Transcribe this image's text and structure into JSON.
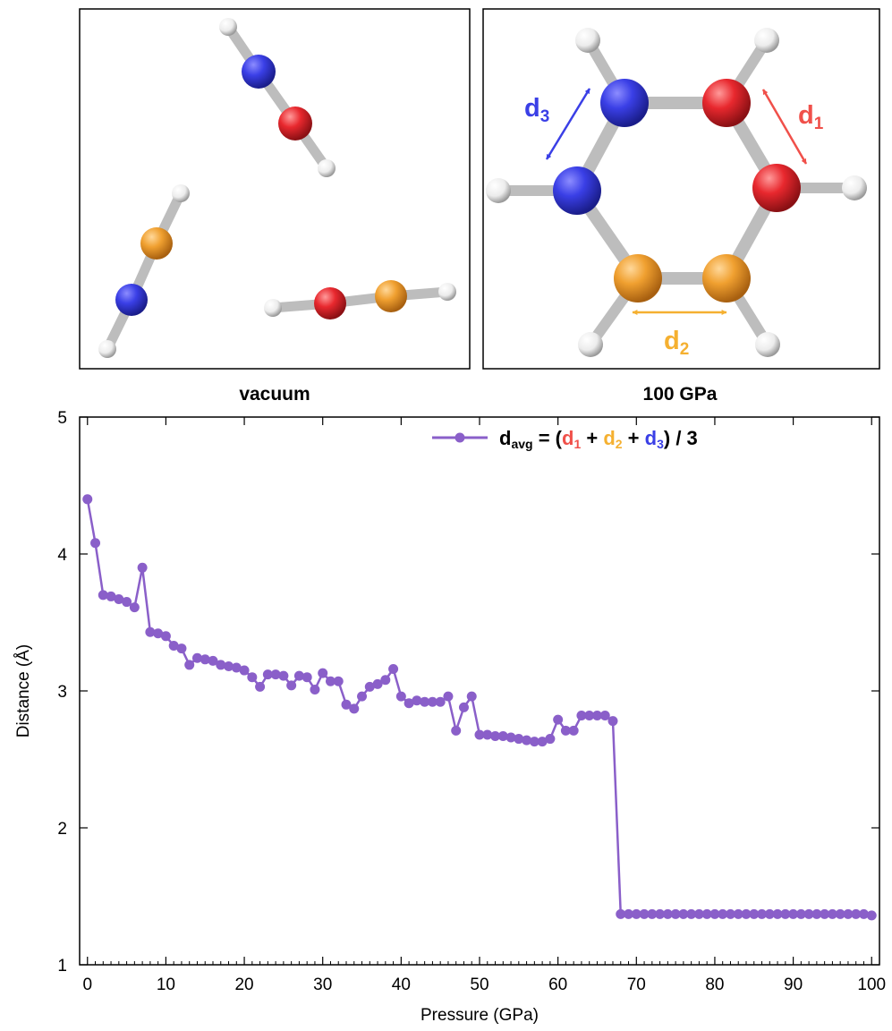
{
  "colors": {
    "N": "#3a3fe6",
    "O": "#e8282e",
    "C": "#f0a030",
    "H": "#ffffff",
    "line": "#8a5fc9",
    "d1": "#f0504a",
    "d2": "#f5b030",
    "d3": "#3a3fe6"
  },
  "panels": {
    "left_label": "vacuum",
    "right_label": "100 GPa"
  },
  "distances": {
    "d1": {
      "main": "d",
      "sub": "1"
    },
    "d2": {
      "main": "d",
      "sub": "2"
    },
    "d3": {
      "main": "d",
      "sub": "3"
    }
  },
  "legend": {
    "prefix": "d",
    "prefix_sub": "avg",
    "eq": " = (",
    "d1": "d",
    "d1_sub": "1",
    "plus1": " + ",
    "d2": "d",
    "d2_sub": "2",
    "plus2": " + ",
    "d3": "d",
    "d3_sub": "3",
    "suffix": ") / 3"
  },
  "chart_data": {
    "type": "line",
    "xlabel": "Pressure (GPa)",
    "ylabel": "Distance (Å)",
    "xlim": [
      -1,
      101
    ],
    "ylim": [
      1,
      5
    ],
    "xticks": [
      0,
      10,
      20,
      30,
      40,
      50,
      60,
      70,
      80,
      90,
      100
    ],
    "yticks": [
      1,
      2,
      3,
      4,
      5
    ],
    "legend_position": "top-right",
    "series": [
      {
        "name": "d_avg = (d1 + d2 + d3) / 3",
        "x": [
          0,
          1,
          2,
          3,
          4,
          5,
          6,
          7,
          8,
          9,
          10,
          11,
          12,
          13,
          14,
          15,
          16,
          17,
          18,
          19,
          20,
          21,
          22,
          23,
          24,
          25,
          26,
          27,
          28,
          29,
          30,
          31,
          32,
          33,
          34,
          35,
          36,
          37,
          38,
          39,
          40,
          41,
          42,
          43,
          44,
          45,
          46,
          47,
          48,
          49,
          50,
          51,
          52,
          53,
          54,
          55,
          56,
          57,
          58,
          59,
          60,
          61,
          62,
          63,
          64,
          65,
          66,
          67,
          68,
          69,
          70,
          71,
          72,
          73,
          74,
          75,
          76,
          77,
          78,
          79,
          80,
          81,
          82,
          83,
          84,
          85,
          86,
          87,
          88,
          89,
          90,
          91,
          92,
          93,
          94,
          95,
          96,
          97,
          98,
          99,
          100
        ],
        "y": [
          4.4,
          4.08,
          3.7,
          3.69,
          3.67,
          3.65,
          3.61,
          3.9,
          3.43,
          3.42,
          3.4,
          3.33,
          3.31,
          3.19,
          3.24,
          3.23,
          3.22,
          3.19,
          3.18,
          3.17,
          3.15,
          3.1,
          3.03,
          3.12,
          3.12,
          3.11,
          3.04,
          3.11,
          3.1,
          3.01,
          3.13,
          3.07,
          3.07,
          2.9,
          2.87,
          2.96,
          3.03,
          3.05,
          3.08,
          3.16,
          2.96,
          2.91,
          2.93,
          2.92,
          2.92,
          2.92,
          2.96,
          2.71,
          2.88,
          2.96,
          2.68,
          2.68,
          2.67,
          2.67,
          2.66,
          2.65,
          2.64,
          2.63,
          2.63,
          2.65,
          2.79,
          2.71,
          2.71,
          2.82,
          2.82,
          2.82,
          2.82,
          2.78,
          1.37,
          1.37,
          1.37,
          1.37,
          1.37,
          1.37,
          1.37,
          1.37,
          1.37,
          1.37,
          1.37,
          1.37,
          1.37,
          1.37,
          1.37,
          1.37,
          1.37,
          1.37,
          1.37,
          1.37,
          1.37,
          1.37,
          1.37,
          1.37,
          1.37,
          1.37,
          1.37,
          1.37,
          1.37,
          1.37,
          1.37,
          1.37,
          1.36
        ]
      }
    ]
  }
}
